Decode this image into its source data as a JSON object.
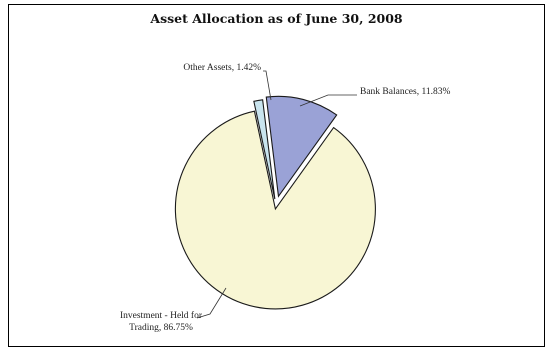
{
  "chart_data": {
    "type": "pie",
    "title": "Asset Allocation as of June 30, 2008",
    "slices": [
      {
        "label": "Bank Balances, 11.83%",
        "value": 11.83,
        "color": "#9aa2d6"
      },
      {
        "label": "Investment - Held for Trading, 86.75%",
        "label_lines": [
          "Investment - Held for",
          "Trading, 86.75%"
        ],
        "value": 86.75,
        "color": "#f8f6d4"
      },
      {
        "label": "Other Assets, 1.42%",
        "value": 1.42,
        "color": "#c9e4ee"
      }
    ],
    "legend": "none",
    "slice_outline": "#1a1a1a"
  }
}
